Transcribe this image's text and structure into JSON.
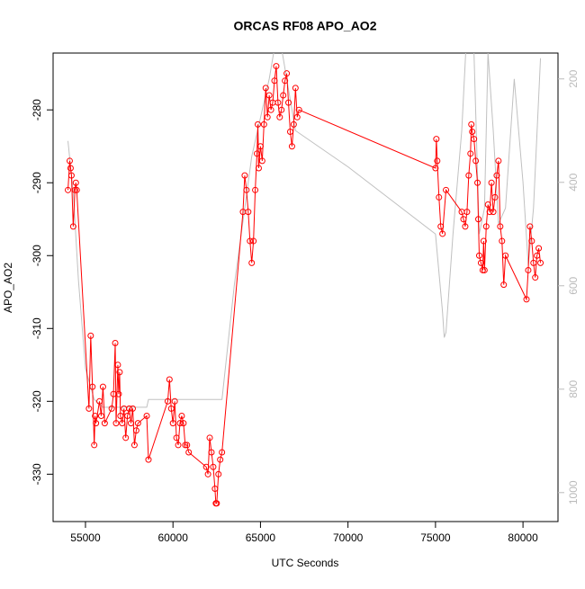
{
  "chart_data": {
    "type": "line",
    "title": "ORCAS RF08 APO_AO2",
    "x_label": "UTC Seconds",
    "y_label": "APO_AO2",
    "xlim": [
      53150,
      82000
    ],
    "ylim": [
      -336.5,
      -272.2
    ],
    "y2lim": [
      1056,
      150
    ],
    "xticks": [
      55000,
      60000,
      65000,
      70000,
      75000,
      80000
    ],
    "yticks": [
      -330,
      -320,
      -310,
      -300,
      -290,
      -280
    ],
    "y2ticks": [
      200,
      400,
      600,
      800,
      1000
    ],
    "series": [
      {
        "color": "#ff0000",
        "marker": "circle",
        "x": [
          54000,
          54100,
          54150,
          54200,
          54300,
          54400,
          54450,
          54500,
          55200,
          55300,
          55400,
          55500,
          55550,
          55600,
          55800,
          55900,
          56000,
          56100,
          56500,
          56600,
          56700,
          56750,
          56850,
          56900,
          56950,
          57000,
          57100,
          57200,
          57300,
          57400,
          57500,
          57600,
          57700,
          57800,
          57900,
          58000,
          58500,
          58600,
          59700,
          59800,
          59900,
          60000,
          60100,
          60200,
          60300,
          60400,
          60500,
          60600,
          60700,
          60800,
          60900,
          61900,
          62000,
          62100,
          62200,
          62300,
          62400,
          62450,
          62500,
          62600,
          62700,
          62800,
          64000,
          64100,
          64200,
          64300,
          64400,
          64500,
          64600,
          64700,
          64800,
          64850,
          64900,
          65000,
          65100,
          65200,
          65300,
          65400,
          65500,
          65600,
          65700,
          65800,
          65900,
          66000,
          66100,
          66200,
          66300,
          66400,
          66500,
          66600,
          66700,
          66800,
          66900,
          67000,
          67100,
          67200,
          75000,
          75050,
          75100,
          75200,
          75300,
          75400,
          75600,
          76500,
          76600,
          76700,
          76800,
          76900,
          77000,
          77050,
          77100,
          77200,
          77300,
          77400,
          77450,
          77500,
          77600,
          77700,
          77750,
          77800,
          77900,
          78000,
          78100,
          78200,
          78300,
          78400,
          78500,
          78600,
          78700,
          78800,
          78900,
          79000,
          80200,
          80300,
          80400,
          80500,
          80600,
          80700,
          80800,
          80900,
          81000
        ],
        "values": [
          -291,
          -287,
          -288,
          -289,
          -296,
          -291,
          -290,
          -291,
          -321,
          -311,
          -318,
          -326,
          -322,
          -323,
          -320,
          -322,
          -318,
          -323,
          -321,
          -319,
          -312,
          -323,
          -315,
          -319,
          -316,
          -322,
          -323,
          -321,
          -325,
          -322,
          -321,
          -323,
          -321,
          -326,
          -324,
          -323,
          -322,
          -328,
          -320,
          -317,
          -321,
          -323,
          -320,
          -325,
          -326,
          -323,
          -322,
          -323,
          -326,
          -326,
          -327,
          -329,
          -330,
          -325,
          -327,
          -329,
          -332,
          -334,
          -334,
          -330,
          -328,
          -327,
          -294,
          -289,
          -291,
          -294,
          -298,
          -301,
          -298,
          -291,
          -286,
          -282,
          -288,
          -285,
          -287,
          -282,
          -277,
          -281,
          -278,
          -280,
          -279,
          -276,
          -274,
          -279,
          -281,
          -280,
          -278,
          -276,
          -275,
          -279,
          -283,
          -285,
          -282,
          -277,
          -281,
          -280,
          -288,
          -284,
          -287,
          -292,
          -296,
          -297,
          -291,
          -294,
          -295,
          -296,
          -294,
          -289,
          -286,
          -282,
          -283,
          -284,
          -287,
          -290,
          -295,
          -300,
          -301,
          -302,
          -298,
          -302,
          -296,
          -293,
          -294,
          -290,
          -294,
          -292,
          -289,
          -287,
          -296,
          -298,
          -304,
          -300,
          -306,
          -302,
          -296,
          -298,
          -301,
          -303,
          -300,
          -299,
          -301
        ]
      },
      {
        "color": "#c0c0c0",
        "axis": "y2",
        "x": [
          54000,
          54300,
          54600,
          55000,
          55500,
          56000,
          58500,
          58600,
          62800,
          63500,
          64500,
          65500,
          66000,
          67000,
          70000,
          75000,
          75400,
          75500,
          75600,
          76000,
          76500,
          76800,
          77200,
          77500,
          77800,
          78000,
          78300,
          78600,
          79000,
          79500,
          80000,
          80300,
          80600,
          81000
        ],
        "values": [
          320,
          420,
          590,
          760,
          820,
          835,
          835,
          820,
          820,
          600,
          350,
          200,
          100,
          300,
          370,
          500,
          650,
          700,
          690,
          500,
          300,
          100,
          150,
          500,
          450,
          150,
          300,
          480,
          450,
          200,
          400,
          560,
          450,
          160
        ]
      }
    ]
  }
}
